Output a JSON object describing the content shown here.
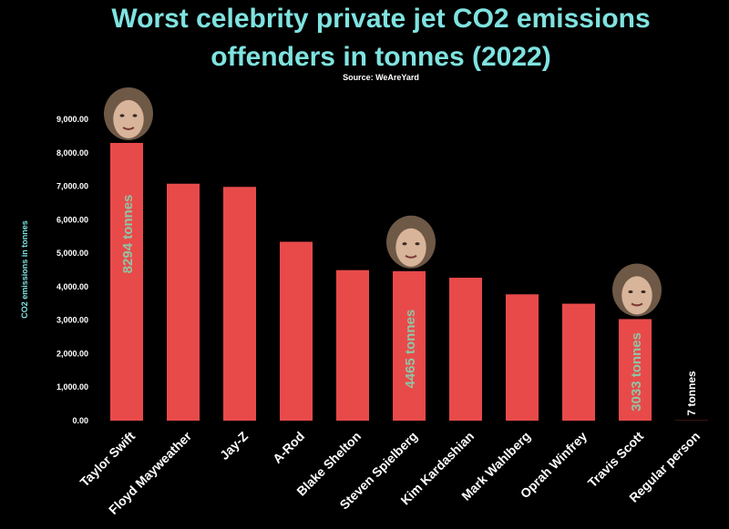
{
  "chart_data": {
    "type": "bar",
    "title_lines": [
      "Worst celebrity private jet CO2 emissions",
      "offenders in tonnes (2022)"
    ],
    "subtitle": "Source: WeAreYard",
    "ylabel": "CO2 emissions in tonnes",
    "ylim": [
      0,
      9000
    ],
    "yticks": [
      "0.00",
      "1,000.00",
      "2,000.00",
      "3,000.00",
      "4,000.00",
      "5,000.00",
      "6,000.00",
      "7,000.00",
      "8,000.00",
      "9,000.00"
    ],
    "categories": [
      "Taylor Swift",
      "Floyd Mayweather",
      "Jay-Z",
      "A-Rod",
      "Blake Shelton",
      "Steven Spielberg",
      "Kim Kardashian",
      "Mark Wahlberg",
      "Oprah Winfrey",
      "Travis Scott",
      "Regular person"
    ],
    "values": [
      8294,
      7076,
      6981,
      5342,
      4495,
      4465,
      4268,
      3772,
      3493,
      3033,
      7
    ],
    "data_labels": [
      {
        "index": 0,
        "text": "8294 tonnes"
      },
      {
        "index": 5,
        "text": "4465 tonnes"
      },
      {
        "index": 9,
        "text": "3033 tonnes"
      },
      {
        "index": 10,
        "text": "7 tonnes"
      }
    ],
    "portraits": [
      {
        "index": 0,
        "icon": "portrait-photo-icon"
      },
      {
        "index": 5,
        "icon": "portrait-photo-icon"
      },
      {
        "index": 9,
        "icon": "portrait-photo-icon"
      }
    ],
    "bar_color": "#e84a4a",
    "title_color": "#7fe3e0",
    "label_color": "#8fc5a6",
    "background": "#000000",
    "grid": false,
    "legend": "none"
  }
}
